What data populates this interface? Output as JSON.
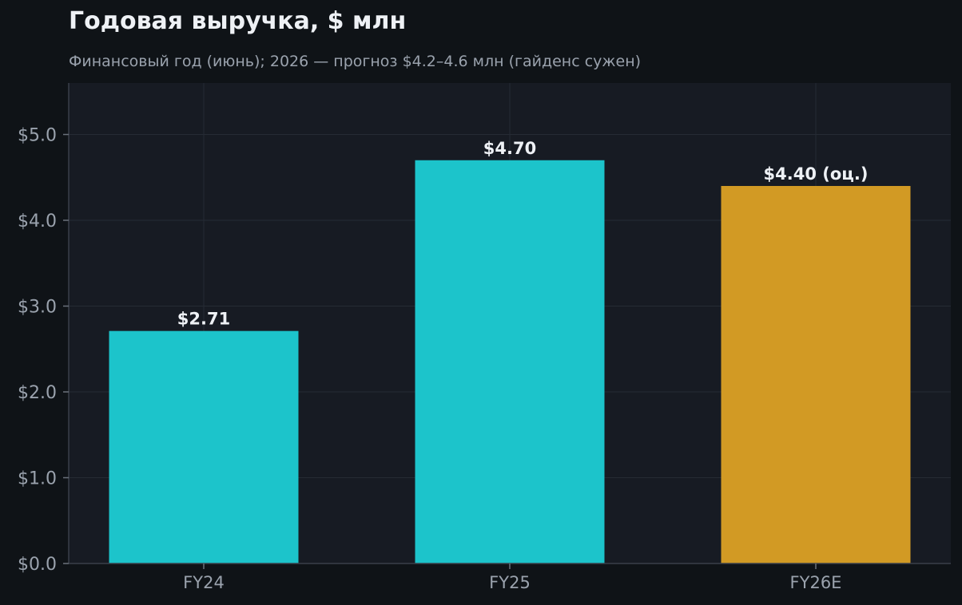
{
  "chart_data": {
    "type": "bar",
    "title": "Годовая выручка, $ млн",
    "subtitle": "Финансовый год (июнь); 2026 — прогноз $4.2–4.6 млн (гайденс сужен)",
    "categories": [
      "FY24",
      "FY25",
      "FY26E"
    ],
    "values": [
      2.71,
      4.7,
      4.4
    ],
    "value_labels": [
      "$2.71",
      "$4.70",
      "$4.40 (оц.)"
    ],
    "bar_colors": [
      "#1cc4cb",
      "#1cc4cb",
      "#d29a24"
    ],
    "ylim": [
      0,
      5.6
    ],
    "yticks": [
      0,
      1,
      2,
      3,
      4,
      5
    ],
    "ytick_labels": [
      "$0.0",
      "$1.0",
      "$2.0",
      "$3.0",
      "$4.0",
      "$5.0"
    ],
    "grid": true,
    "xlabel": "",
    "ylabel": ""
  }
}
